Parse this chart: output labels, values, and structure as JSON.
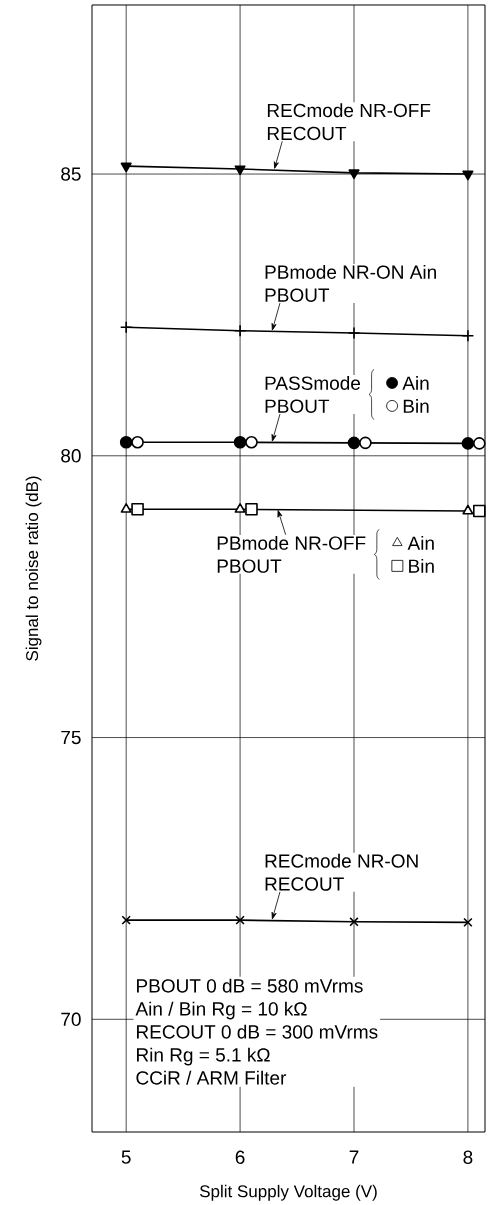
{
  "chart_data": {
    "type": "line",
    "xlabel": "Split Supply Voltage (V)",
    "ylabel": "Signal to noise ratio (dB)",
    "xlim": [
      4.7,
      8.15
    ],
    "ylim": [
      68,
      88
    ],
    "xticks": [
      5,
      6,
      7,
      8
    ],
    "yticks": [
      70,
      75,
      80,
      85
    ],
    "grid": true,
    "line_style": "solid",
    "legend": "right",
    "series": [
      {
        "color": "#000000",
        "marker": "triangle-down",
        "x": [
          5,
          6,
          7,
          8
        ],
        "values": [
          85.14,
          85.09,
          85.02,
          85.0
        ]
      },
      {
        "color": "#000000",
        "marker": "plus",
        "x": [
          5,
          6,
          7,
          8
        ],
        "values": [
          82.28,
          82.22,
          82.18,
          82.13
        ]
      },
      {
        "name": "Ain",
        "color": "#000000",
        "marker": "circle",
        "x": [
          5,
          6,
          7,
          8
        ],
        "values": [
          80.24,
          80.24,
          80.23,
          80.22
        ]
      },
      {
        "type": "scatter",
        "name": "Bin",
        "color": "#000000",
        "marker": "circle-open",
        "x": [
          5.1,
          6.1,
          7.1,
          8.1
        ],
        "values": [
          80.24,
          80.24,
          80.23,
          80.22
        ]
      },
      {
        "name": "Ain",
        "color": "#000000",
        "marker": "triangle-open",
        "x": [
          5,
          6,
          7,
          8
        ],
        "values": [
          79.05,
          79.05,
          null,
          79.02
        ]
      },
      {
        "type": "scatter",
        "name": "Bin",
        "color": "#000000",
        "marker": "square-open",
        "x": [
          5.1,
          6.1,
          7.1,
          8.1
        ],
        "values": [
          79.05,
          79.05,
          null,
          79.02
        ]
      },
      {
        "color": "#000000",
        "marker": "cross",
        "x": [
          5,
          6,
          7,
          8
        ],
        "values": [
          71.76,
          71.76,
          71.73,
          71.72
        ]
      }
    ],
    "annotations": [
      "PBOUT 0 dB = 580 mVrms",
      "Ain / Bin Rg = 10 kΩ",
      "RECOUT 0 dB = 300 mVrms",
      "Rin Rg = 5.1 kΩ",
      "CCiR / ARM Filter",
      {
        "text": "RECmode NR-OFF",
        "x": 6.3,
        "y": 85.08
      },
      "RECOUT",
      {
        "text": "PBmode NR-ON Ain",
        "x": 6.28,
        "y": 82.21
      },
      "PBOUT",
      {
        "text": "PASSmode",
        "x": 6.28,
        "y": 80.24
      },
      "PBOUT",
      {
        "text": "PBmode NR-OFF",
        "x": 6.33,
        "y": 79.05
      },
      "PBOUT",
      {
        "text": "RECmode NR-ON",
        "x": 6.28,
        "y": 71.76
      },
      "RECOUT"
    ]
  }
}
